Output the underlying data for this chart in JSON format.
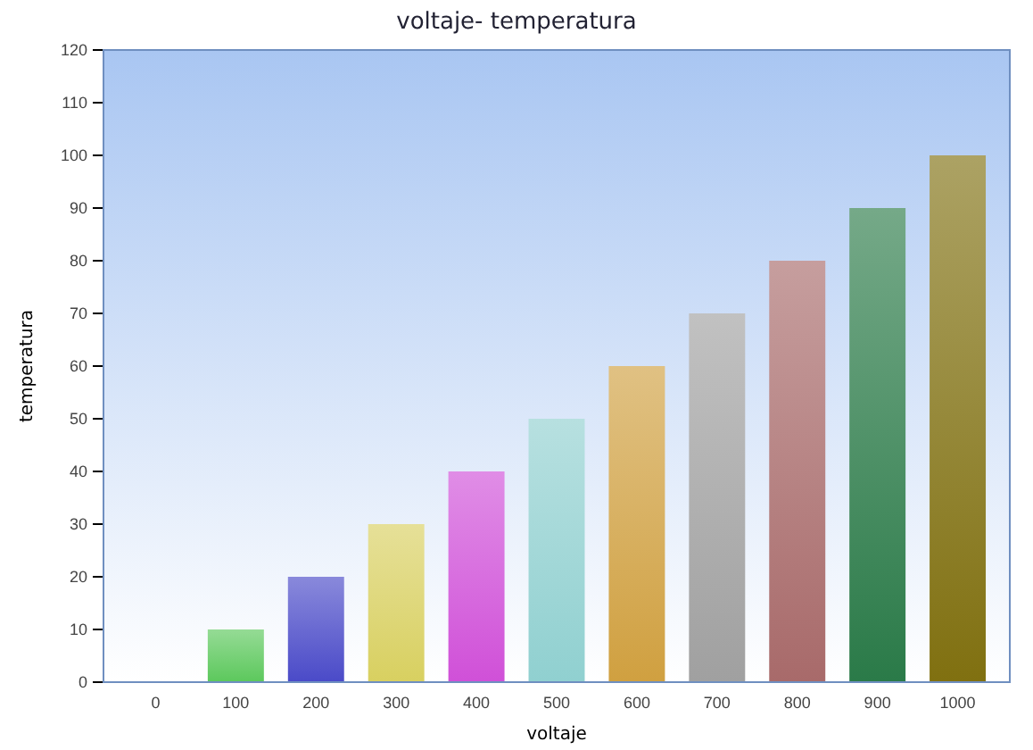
{
  "chart_data": {
    "type": "bar",
    "title": "voltaje- temperatura",
    "xlabel": "voltaje",
    "ylabel": "temperatura",
    "categories": [
      "0",
      "100",
      "200",
      "300",
      "400",
      "500",
      "600",
      "700",
      "800",
      "900",
      "1000"
    ],
    "values": [
      0,
      10,
      20,
      30,
      40,
      50,
      60,
      70,
      80,
      90,
      100
    ],
    "colors": [
      "#cccccc",
      "#5cc85c",
      "#4a4ac8",
      "#d8d060",
      "#d050d8",
      "#90d0d0",
      "#d0a040",
      "#a0a0a0",
      "#a86a6a",
      "#2a7a48",
      "#807010"
    ],
    "ylim": [
      0,
      120
    ],
    "yticks": [
      0,
      10,
      20,
      30,
      40,
      50,
      60,
      70,
      80,
      90,
      100,
      110,
      120
    ],
    "grid": false
  }
}
